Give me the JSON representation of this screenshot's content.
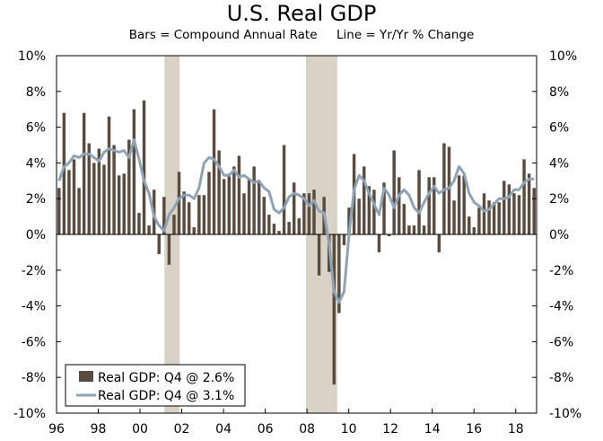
{
  "chart_data": {
    "type": "bar+line",
    "title": "U.S. Real GDP",
    "subtitle_bars": "Bars = Compound Annual Rate",
    "subtitle_line": "Line = Yr/Yr % Change",
    "ylim": [
      -10,
      10
    ],
    "y_ticks": [
      "10%",
      "8%",
      "6%",
      "4%",
      "2%",
      "0%",
      "-2%",
      "-4%",
      "-6%",
      "-8%",
      "-10%"
    ],
    "x_ticks": [
      "96",
      "98",
      "00",
      "02",
      "04",
      "06",
      "08",
      "10",
      "12",
      "14",
      "16",
      "18"
    ],
    "x_start_year": 1996,
    "recessions": [
      {
        "start": 2001.17,
        "end": 2001.9
      },
      {
        "start": 2007.95,
        "end": 2009.45
      }
    ],
    "series": [
      {
        "name": "Real GDP: Q4 @ 2.6%",
        "kind": "bar",
        "color": "#5a4b40",
        "values": [
          2.6,
          6.8,
          3.6,
          4.2,
          2.6,
          6.8,
          5.1,
          4.0,
          4.8,
          3.9,
          6.6,
          5.0,
          3.3,
          3.4,
          5.3,
          7.0,
          1.2,
          7.5,
          0.5,
          2.5,
          -1.1,
          2.1,
          -1.7,
          1.1,
          3.5,
          2.4,
          1.8,
          0.4,
          2.2,
          2.2,
          3.5,
          7.0,
          4.7,
          3.1,
          3.4,
          3.8,
          4.4,
          2.3,
          3.1,
          3.8,
          3.0,
          2.1,
          1.1,
          0.6,
          0.2,
          5.0,
          0.7,
          2.9,
          0.9,
          2.3,
          2.3,
          2.5,
          -2.3,
          2.1,
          -2.1,
          -8.4,
          -4.4,
          -0.6,
          1.5,
          4.5,
          2.0,
          3.8,
          2.7,
          2.5,
          -1.0,
          2.9,
          -0.1,
          4.7,
          3.2,
          1.7,
          0.5,
          0.5,
          3.6,
          0.5,
          3.2,
          3.2,
          -1.0,
          5.1,
          4.9,
          1.9,
          3.3,
          3.3,
          1.0,
          0.4,
          1.5,
          2.3,
          1.9,
          1.8,
          1.8,
          3.0,
          2.8,
          2.3,
          2.2,
          4.2,
          3.4,
          2.6
        ]
      },
      {
        "name": "Real GDP: Q4 @ 3.1%",
        "kind": "line",
        "color": "#8fa3b5",
        "values": [
          3.0,
          3.8,
          4.0,
          4.4,
          4.3,
          4.5,
          4.5,
          4.3,
          4.1,
          4.6,
          4.8,
          4.7,
          4.6,
          4.7,
          4.3,
          5.3,
          4.2,
          3.0,
          2.3,
          1.0,
          0.5,
          0.2,
          1.1,
          1.5,
          2.0,
          2.2,
          2.2,
          2.0,
          2.6,
          4.0,
          4.3,
          4.2,
          3.8,
          3.3,
          3.3,
          3.6,
          3.2,
          3.3,
          3.1,
          2.9,
          3.0,
          2.6,
          2.4,
          1.4,
          1.2,
          1.5,
          2.1,
          2.3,
          2.2,
          2.0,
          1.6,
          1.9,
          1.3,
          1.2,
          -0.5,
          -3.2,
          -3.8,
          -3.2,
          0.0,
          2.5,
          3.3,
          3.0,
          2.3,
          1.7,
          1.1,
          2.6,
          2.2,
          1.5,
          2.2,
          2.5,
          2.2,
          1.5,
          1.2,
          1.8,
          2.3,
          2.7,
          2.3,
          2.5,
          2.6,
          3.0,
          3.8,
          3.4,
          2.3,
          1.8,
          1.6,
          1.3,
          1.4,
          1.7,
          2.0,
          2.0,
          2.1,
          2.5,
          2.5,
          2.9,
          3.1,
          3.1
        ]
      }
    ],
    "legend_position": "bottom-left"
  }
}
